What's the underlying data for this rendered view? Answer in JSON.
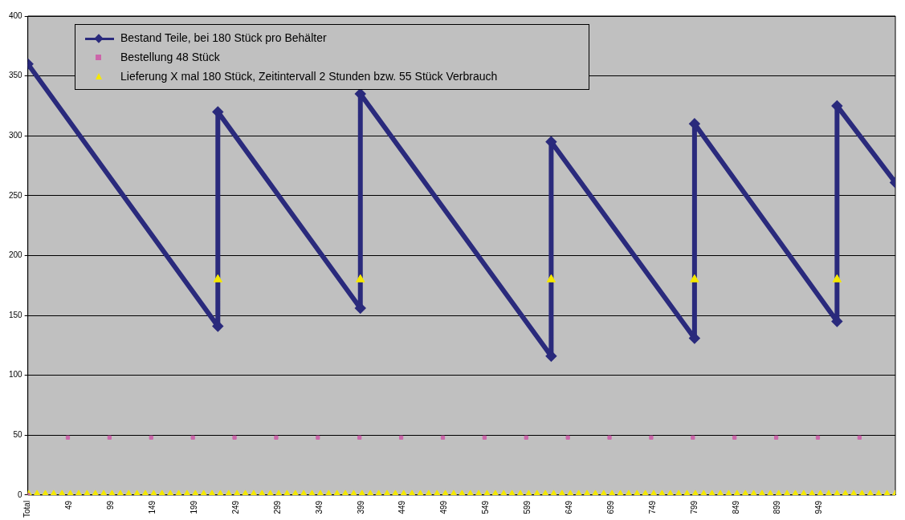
{
  "chart_data": {
    "type": "line",
    "legend": "top left",
    "grid": "y",
    "xlim": [
      -1,
      1040
    ],
    "ylim": [
      0,
      400
    ],
    "xticks": [
      {
        "value": -1,
        "label": "Total"
      },
      49,
      99,
      149,
      199,
      249,
      299,
      349,
      399,
      449,
      499,
      549,
      599,
      649,
      699,
      749,
      799,
      849,
      899,
      949
    ],
    "yticks": [
      0,
      50,
      100,
      150,
      200,
      250,
      300,
      350,
      400
    ],
    "series": [
      {
        "name": "Bestand Teile, bei 180 Stück pro Behälter",
        "marker": "diamond",
        "line_style": "solid",
        "color": "#2a2a7c",
        "x": [
          -1,
          227,
          227,
          398,
          398,
          627,
          627,
          799,
          799,
          970,
          970,
          1040
        ],
        "values": [
          360,
          141,
          320,
          156,
          335,
          116,
          295,
          131,
          310,
          145,
          325,
          261
        ]
      },
      {
        "name": "Bestellung 48 Stück",
        "type": "scatter",
        "marker": "square",
        "color": "#cc66aa",
        "x": [
          -1,
          47,
          97,
          147,
          197,
          247,
          297,
          347,
          397,
          447,
          497,
          547,
          597,
          647,
          697,
          747,
          797,
          847,
          897,
          947,
          997
        ],
        "values": [
          0,
          48,
          48,
          48,
          48,
          48,
          48,
          48,
          48,
          48,
          48,
          48,
          48,
          48,
          48,
          48,
          48,
          48,
          48,
          48,
          48
        ]
      },
      {
        "name": "Lieferung X mal 180 Stück, Zeitintervall 2 Stunden bzw. 55 Stück Verbrauch",
        "type": "scatter",
        "marker": "triangle",
        "color": "#f5e800",
        "x": [
          0,
          10,
          20,
          30,
          40,
          50,
          60,
          70,
          80,
          90,
          100,
          110,
          120,
          130,
          140,
          150,
          160,
          170,
          180,
          190,
          200,
          210,
          220,
          230,
          240,
          250,
          260,
          270,
          280,
          290,
          300,
          310,
          320,
          330,
          340,
          350,
          360,
          370,
          380,
          390,
          400,
          410,
          420,
          430,
          440,
          450,
          460,
          470,
          480,
          490,
          500,
          510,
          520,
          530,
          540,
          550,
          560,
          570,
          580,
          590,
          600,
          610,
          620,
          630,
          640,
          650,
          660,
          670,
          680,
          690,
          700,
          710,
          720,
          730,
          740,
          750,
          760,
          770,
          780,
          790,
          800,
          810,
          820,
          830,
          840,
          850,
          860,
          870,
          880,
          890,
          900,
          910,
          920,
          930,
          940,
          950,
          960,
          970,
          980,
          990,
          1000,
          1010,
          1020,
          1030,
          1040,
          227,
          398,
          627,
          799,
          970
        ],
        "values": [
          0,
          0,
          0,
          0,
          0,
          0,
          0,
          0,
          0,
          0,
          0,
          0,
          0,
          0,
          0,
          0,
          0,
          0,
          0,
          0,
          0,
          0,
          0,
          0,
          0,
          0,
          0,
          0,
          0,
          0,
          0,
          0,
          0,
          0,
          0,
          0,
          0,
          0,
          0,
          0,
          0,
          0,
          0,
          0,
          0,
          0,
          0,
          0,
          0,
          0,
          0,
          0,
          0,
          0,
          0,
          0,
          0,
          0,
          0,
          0,
          0,
          0,
          0,
          0,
          0,
          0,
          0,
          0,
          0,
          0,
          0,
          0,
          0,
          0,
          0,
          0,
          0,
          0,
          0,
          0,
          0,
          0,
          0,
          0,
          0,
          0,
          0,
          0,
          0,
          0,
          0,
          0,
          0,
          0,
          0,
          0,
          0,
          0,
          0,
          0,
          0,
          0,
          0,
          0,
          0,
          180,
          180,
          180,
          180,
          180
        ]
      }
    ]
  }
}
